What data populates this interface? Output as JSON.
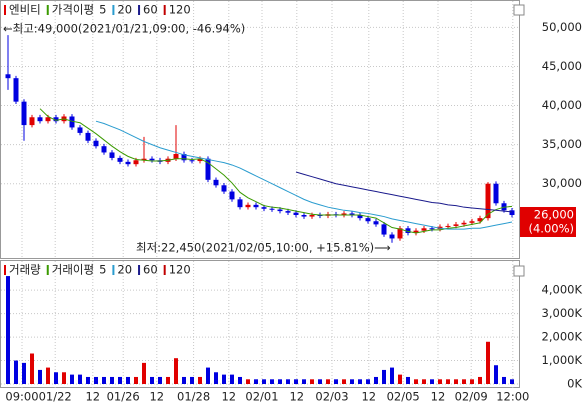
{
  "chart_data": [
    {
      "type": "candlestick",
      "name": "엔비티",
      "ma_label": "가격이평",
      "up_color": "#e00000",
      "down_color": "#0000e0",
      "open": [
        44000,
        43500,
        40500,
        37500,
        38500,
        38000,
        38500,
        38000,
        38600,
        37200,
        36500,
        35500,
        34800,
        34000,
        33300,
        32800,
        32500,
        33000,
        33200,
        33000,
        32800,
        33200,
        33800,
        33000,
        32900,
        33200,
        30500,
        29800,
        29000,
        28000,
        27000,
        27300,
        27000,
        26800,
        26700,
        26500,
        26300,
        26000,
        25800,
        26000,
        25900,
        26100,
        26000,
        26200,
        26000,
        25600,
        25200,
        24800,
        23500,
        23000,
        24300,
        23700,
        24000,
        24300,
        24200,
        24500,
        24600,
        24800,
        25000,
        25200,
        25600,
        30000,
        27500,
        26600
      ],
      "high": [
        49000,
        43800,
        40800,
        38800,
        38800,
        38800,
        38800,
        38900,
        38900,
        37500,
        36800,
        35800,
        35100,
        34300,
        33600,
        33100,
        33300,
        36000,
        33500,
        33300,
        33500,
        37500,
        34100,
        33300,
        33500,
        33500,
        30800,
        30100,
        29300,
        28300,
        27600,
        27600,
        27300,
        27100,
        27000,
        26800,
        26600,
        26300,
        26300,
        26300,
        26400,
        26400,
        26500,
        26500,
        26300,
        25900,
        25500,
        25100,
        23800,
        24600,
        24600,
        24300,
        24600,
        24600,
        24800,
        24900,
        25100,
        25300,
        25500,
        25900,
        30200,
        30300,
        27800,
        26900
      ],
      "low": [
        42000,
        40200,
        35500,
        37200,
        37700,
        37700,
        37700,
        37700,
        36900,
        36200,
        35200,
        34500,
        33700,
        33000,
        32500,
        32200,
        32200,
        32700,
        32700,
        32500,
        32500,
        32900,
        32700,
        32600,
        32600,
        30200,
        29500,
        28700,
        27700,
        26700,
        26700,
        26700,
        26500,
        26400,
        26200,
        26000,
        25700,
        25500,
        25500,
        25600,
        25600,
        25700,
        25700,
        25700,
        25300,
        24900,
        24500,
        23200,
        22450,
        22700,
        23400,
        23400,
        23700,
        23900,
        23900,
        24200,
        24300,
        24500,
        24700,
        24900,
        25300,
        27200,
        26300,
        25700
      ],
      "close": [
        43500,
        40500,
        37500,
        38500,
        38000,
        38500,
        38000,
        38600,
        37200,
        36500,
        35500,
        34800,
        34000,
        33300,
        32800,
        32500,
        33000,
        33200,
        33000,
        32800,
        33200,
        33800,
        33000,
        32900,
        33200,
        30500,
        29800,
        29000,
        28000,
        27000,
        27300,
        27000,
        26800,
        26700,
        26500,
        26300,
        26000,
        25800,
        26000,
        25900,
        26100,
        26000,
        26200,
        26000,
        25600,
        25200,
        24800,
        23500,
        23000,
        24300,
        23700,
        24000,
        24300,
        24200,
        24500,
        24600,
        24800,
        25000,
        25200,
        25600,
        30000,
        27500,
        26600,
        26000
      ],
      "series": [
        {
          "name": "5",
          "color": "#3a9a00",
          "values": [
            null,
            null,
            null,
            null,
            39600,
            38600,
            38100,
            38300,
            38000,
            37800,
            37100,
            36400,
            35600,
            34800,
            34100,
            33500,
            33100,
            33000,
            32900,
            32900,
            33000,
            33200,
            33200,
            33100,
            33200,
            32700,
            31900,
            31100,
            30100,
            28900,
            28200,
            27700,
            27200,
            27000,
            26900,
            26700,
            26500,
            26300,
            26100,
            26000,
            26000,
            26000,
            26000,
            26000,
            26000,
            25800,
            25600,
            25000,
            24400,
            24200,
            23900,
            23700,
            23900,
            24100,
            24100,
            24300,
            24400,
            24600,
            24800,
            25000,
            26100,
            26700,
            27000,
            27100
          ]
        },
        {
          "name": "20",
          "color": "#2a9ccf",
          "values": [
            null,
            null,
            null,
            null,
            null,
            null,
            null,
            null,
            null,
            null,
            null,
            38000,
            37700,
            37300,
            36900,
            36400,
            35900,
            35400,
            35000,
            34600,
            34300,
            34000,
            33700,
            33500,
            33300,
            33100,
            32900,
            32700,
            32400,
            32000,
            31500,
            31000,
            30500,
            30000,
            29500,
            29000,
            28500,
            28000,
            27600,
            27300,
            27000,
            26800,
            26600,
            26500,
            26300,
            26200,
            26000,
            25800,
            25500,
            25300,
            25100,
            24900,
            24700,
            24500,
            24300,
            24200,
            24200,
            24200,
            24300,
            24300,
            24500,
            24700,
            24900,
            25100
          ]
        },
        {
          "name": "60",
          "color": "#1a1a8c",
          "values": [
            null,
            null,
            null,
            null,
            null,
            null,
            null,
            null,
            null,
            null,
            null,
            null,
            null,
            null,
            null,
            null,
            null,
            null,
            null,
            null,
            null,
            null,
            null,
            null,
            null,
            null,
            null,
            null,
            null,
            null,
            null,
            null,
            null,
            null,
            null,
            null,
            31500,
            31200,
            30900,
            30600,
            30300,
            30000,
            29800,
            29600,
            29400,
            29200,
            29000,
            28800,
            28600,
            28400,
            28200,
            28000,
            27800,
            27600,
            27500,
            27300,
            27200,
            27000,
            26900,
            26800,
            26700,
            26600,
            26500,
            26400
          ]
        },
        {
          "name": "120",
          "color": "#c00000"
        }
      ],
      "annotations": [
        "←최고:49,000(2021/01/21,09:00, -46.94%)",
        "최저:22,450(2021/02/05,10:00, +15.81%)⟶"
      ],
      "last_price": {
        "value": 26000,
        "label": "26,000"
      },
      "change": "(4.00%)",
      "ylim": [
        20500,
        53500
      ],
      "yticks": [
        {
          "value": 30000,
          "label": "30,000"
        },
        {
          "value": 35000,
          "label": "35,000"
        },
        {
          "value": 40000,
          "label": "40,000"
        },
        {
          "value": 45000,
          "label": "45,000"
        },
        {
          "value": 50000,
          "label": "50,000"
        }
      ],
      "grid": true
    },
    {
      "type": "bar",
      "name": "거래량",
      "ma_label": "거래이평",
      "values": [
        4600,
        1000,
        900,
        1300,
        600,
        700,
        500,
        500,
        400,
        400,
        300,
        300,
        300,
        300,
        300,
        300,
        300,
        900,
        300,
        300,
        300,
        1100,
        300,
        300,
        300,
        700,
        500,
        400,
        400,
        300,
        200,
        200,
        200,
        200,
        200,
        200,
        200,
        200,
        200,
        200,
        200,
        200,
        200,
        200,
        200,
        200,
        300,
        600,
        700,
        400,
        300,
        200,
        200,
        200,
        200,
        200,
        200,
        200,
        200,
        300,
        1800,
        800,
        300,
        200
      ],
      "series": [
        {
          "name": "5",
          "color": "#3a9a00"
        },
        {
          "name": "20",
          "color": "#2a9ccf"
        },
        {
          "name": "60",
          "color": "#1a1a8c"
        },
        {
          "name": "120",
          "color": "#c00000"
        }
      ],
      "ylim": [
        0,
        5200
      ],
      "yticks": [
        {
          "value": 0,
          "label": "0K"
        },
        {
          "value": 1000,
          "label": "1,000K"
        },
        {
          "value": 2000,
          "label": "2,000K"
        },
        {
          "value": 3000,
          "label": "3,000K"
        },
        {
          "value": 4000,
          "label": "4,000K"
        }
      ],
      "xticks": [
        {
          "value": 1.75,
          "label": "09:00"
        },
        {
          "value": 5.9,
          "label": "01/22"
        },
        {
          "value": 10.6,
          "label": "12"
        },
        {
          "value": 14.4,
          "label": "01/26"
        },
        {
          "value": 18.6,
          "label": "12"
        },
        {
          "value": 23.2,
          "label": "01/28"
        },
        {
          "value": 27.6,
          "label": "12"
        },
        {
          "value": 31.75,
          "label": "02/01"
        },
        {
          "value": 36.1,
          "label": "12"
        },
        {
          "value": 40.5,
          "label": "02/03"
        },
        {
          "value": 45.1,
          "label": "12"
        },
        {
          "value": 49.4,
          "label": "02/05"
        },
        {
          "value": 53.75,
          "label": "12"
        },
        {
          "value": 57.9,
          "label": "02/09"
        },
        {
          "value": 63.1,
          "label": "12:00"
        }
      ],
      "grid": true
    }
  ]
}
